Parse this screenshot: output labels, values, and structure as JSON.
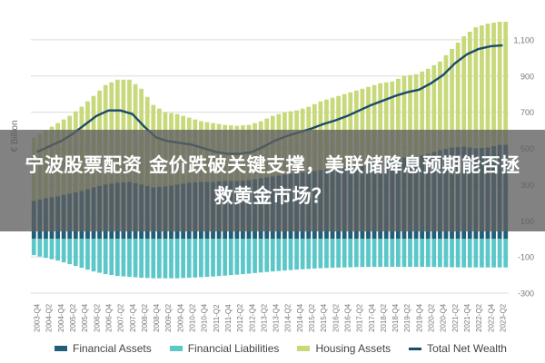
{
  "chart_data": {
    "type": "bar",
    "title": "",
    "ylabel": "€ Billion",
    "ylim": [
      -300,
      1200
    ],
    "yticks": [
      -300,
      -100,
      100,
      300,
      500,
      700,
      900,
      1100
    ],
    "ytick_labels": [
      "-300",
      "-100",
      "100",
      "300",
      "500",
      "700",
      "900",
      "1,100"
    ],
    "grid": true,
    "legend_position": "bottom",
    "categories": [
      "2003-Q4",
      "2004-Q2",
      "2004-Q4",
      "2005-Q2",
      "2005-Q4",
      "2006-Q2",
      "2006-Q4",
      "2007-Q2",
      "2007-Q4",
      "2008-Q2",
      "2008-Q4",
      "2009-Q2",
      "2009-Q4",
      "2010-Q2",
      "2010-Q4",
      "2011-Q2",
      "2011-Q4",
      "2012-Q2",
      "2012-Q4",
      "2013-Q2",
      "2013-Q4",
      "2014-Q2",
      "2014-Q4",
      "2015-Q2",
      "2015-Q4",
      "2016-Q2",
      "2016-Q4",
      "2017-Q2",
      "2017-Q4",
      "2018-Q2",
      "2018-Q4",
      "2019-Q2",
      "2019-Q4",
      "2020-Q2",
      "2020-Q4",
      "2021-Q2",
      "2021-Q4",
      "2022-Q2",
      "2022-Q4",
      "2023-Q2"
    ],
    "series": [
      {
        "name": "Financial Assets",
        "kind": "bar",
        "color": "#1f5f7a",
        "values": [
          210,
          225,
          235,
          250,
          265,
          285,
          300,
          310,
          315,
          300,
          285,
          290,
          300,
          310,
          315,
          315,
          320,
          320,
          325,
          335,
          345,
          355,
          365,
          370,
          380,
          385,
          395,
          405,
          420,
          430,
          435,
          450,
          455,
          470,
          490,
          505,
          510,
          500,
          505,
          520
        ]
      },
      {
        "name": "Financial Liabilities",
        "kind": "bar",
        "color": "#5bc7c9",
        "values": [
          -90,
          -105,
          -120,
          -140,
          -160,
          -180,
          -195,
          -205,
          -210,
          -215,
          -218,
          -218,
          -218,
          -215,
          -212,
          -208,
          -203,
          -198,
          -192,
          -186,
          -180,
          -175,
          -170,
          -166,
          -162,
          -160,
          -158,
          -156,
          -155,
          -155,
          -155,
          -155,
          -155,
          -155,
          -156,
          -157,
          -158,
          -158,
          -158,
          -158
        ]
      },
      {
        "name": "Housing Assets",
        "kind": "bar",
        "color": "#c7d97a",
        "values": [
          560,
          600,
          640,
          680,
          730,
          790,
          850,
          880,
          880,
          830,
          740,
          700,
          690,
          670,
          650,
          640,
          630,
          625,
          630,
          650,
          680,
          700,
          710,
          730,
          760,
          780,
          800,
          820,
          840,
          860,
          870,
          900,
          910,
          940,
          980,
          1050,
          1120,
          1170,
          1190,
          1200
        ]
      },
      {
        "name": "Total Net Wealth",
        "kind": "line",
        "color": "#1c4a6b",
        "values": [
          480,
          510,
          540,
          580,
          630,
          680,
          710,
          710,
          690,
          620,
          560,
          540,
          530,
          520,
          500,
          480,
          470,
          470,
          480,
          510,
          545,
          570,
          590,
          610,
          635,
          655,
          680,
          710,
          740,
          765,
          790,
          810,
          825,
          860,
          905,
          970,
          1020,
          1050,
          1065,
          1070
        ]
      }
    ]
  },
  "overlay": {
    "title": "宁波股票配资 金价跌破关键支撑，美联储降息预期能否拯救黄金市场？"
  }
}
